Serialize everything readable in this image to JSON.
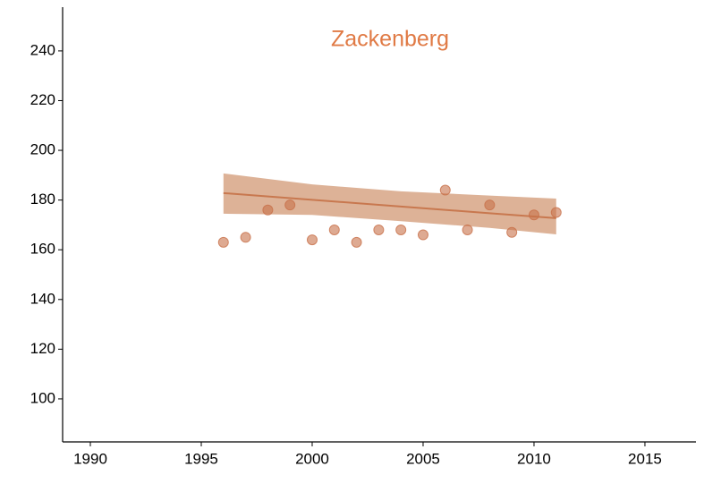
{
  "chart_data": {
    "type": "scatter",
    "title": "Zackenberg",
    "x": [
      1996,
      1997,
      1998,
      1999,
      2000,
      2001,
      2002,
      2003,
      2004,
      2005,
      2006,
      2007,
      2008,
      2009,
      2010,
      2011
    ],
    "values": [
      163,
      165,
      176,
      178,
      164,
      168,
      163,
      168,
      168,
      166,
      184,
      168,
      178,
      167,
      174,
      175
    ],
    "color": "#c8714a",
    "fit": {
      "x": [
        1996,
        2000,
        2004,
        2008,
        2011
      ],
      "values": [
        182.8,
        180.1,
        177.4,
        174.7,
        172.7
      ],
      "lower": [
        174.5,
        174.0,
        171.5,
        168.8,
        166.2
      ],
      "upper": [
        190.7,
        186.3,
        183.5,
        181.8,
        180.6
      ],
      "color": "#c8784f",
      "band_color": "#d9aa8c"
    },
    "xlim": [
      1988.75,
      2017.3
    ],
    "ylim": [
      82.7,
      257.6
    ],
    "xticks": [
      1990,
      1995,
      2000,
      2005,
      2010,
      2015
    ],
    "yticks": [
      100,
      120,
      140,
      160,
      180,
      200,
      220,
      240
    ]
  }
}
